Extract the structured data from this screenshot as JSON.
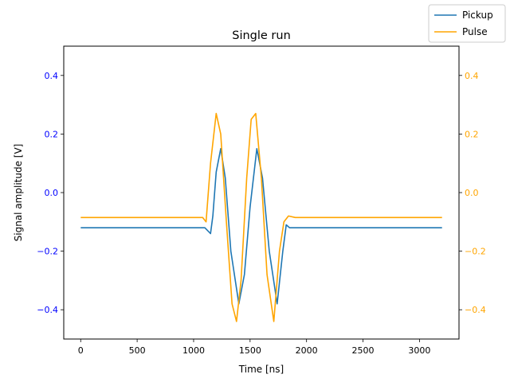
{
  "chart_data": {
    "type": "line",
    "title": "Single run",
    "xlabel": "Time [ns]",
    "ylabel_left": "Signal amplitude [V]",
    "ylabel_right": "",
    "xlim": [
      -150,
      3350
    ],
    "ylim_left": [
      -0.5,
      0.5
    ],
    "ylim_right": [
      -0.5,
      0.5
    ],
    "grid": false,
    "legend_placement": "top-right, outside plot",
    "x_ticks": [
      {
        "value": 0,
        "label": "0"
      },
      {
        "value": 500,
        "label": "500"
      },
      {
        "value": 1000,
        "label": "1000"
      },
      {
        "value": 1500,
        "label": "1500"
      },
      {
        "value": 2000,
        "label": "2000"
      },
      {
        "value": 2500,
        "label": "2500"
      },
      {
        "value": 3000,
        "label": "3000"
      }
    ],
    "y_ticks_left": [
      {
        "value": 0.4,
        "label": "0.4"
      },
      {
        "value": 0.2,
        "label": "0.2"
      },
      {
        "value": 0.0,
        "label": "0.0"
      },
      {
        "value": -0.2,
        "label": "−0.2"
      },
      {
        "value": -0.4,
        "label": "−0.4"
      }
    ],
    "y_ticks_right": [
      {
        "value": 0.4,
        "label": "0.4"
      },
      {
        "value": 0.2,
        "label": "0.2"
      },
      {
        "value": 0.0,
        "label": "0.0"
      },
      {
        "value": -0.2,
        "label": "−0.2"
      },
      {
        "value": -0.4,
        "label": "−0.4"
      }
    ],
    "left_tick_color": "#0000ff",
    "right_tick_color": "#ffa500",
    "series": [
      {
        "name": "Pickup",
        "axis": "left",
        "color": "#1f77b4",
        "x": [
          0,
          1000,
          1100,
          1150,
          1170,
          1200,
          1240,
          1280,
          1330,
          1400,
          1450,
          1500,
          1560,
          1610,
          1670,
          1740,
          1790,
          1820,
          1850,
          1900,
          2000,
          3200
        ],
        "y": [
          -0.12,
          -0.12,
          -0.12,
          -0.14,
          -0.08,
          0.07,
          0.15,
          0.05,
          -0.2,
          -0.38,
          -0.28,
          -0.05,
          0.15,
          0.05,
          -0.2,
          -0.38,
          -0.2,
          -0.11,
          -0.12,
          -0.12,
          -0.12,
          -0.12
        ]
      },
      {
        "name": "Pulse",
        "axis": "right",
        "color": "#ffa500",
        "x": [
          0,
          1000,
          1080,
          1110,
          1150,
          1200,
          1240,
          1290,
          1340,
          1380,
          1420,
          1470,
          1510,
          1550,
          1600,
          1650,
          1710,
          1760,
          1800,
          1840,
          1900,
          2000,
          3200
        ],
        "y": [
          -0.085,
          -0.085,
          -0.085,
          -0.1,
          0.1,
          0.27,
          0.2,
          -0.1,
          -0.38,
          -0.44,
          -0.3,
          0.05,
          0.25,
          0.27,
          0.05,
          -0.28,
          -0.44,
          -0.2,
          -0.1,
          -0.08,
          -0.085,
          -0.085,
          -0.085
        ]
      }
    ]
  }
}
